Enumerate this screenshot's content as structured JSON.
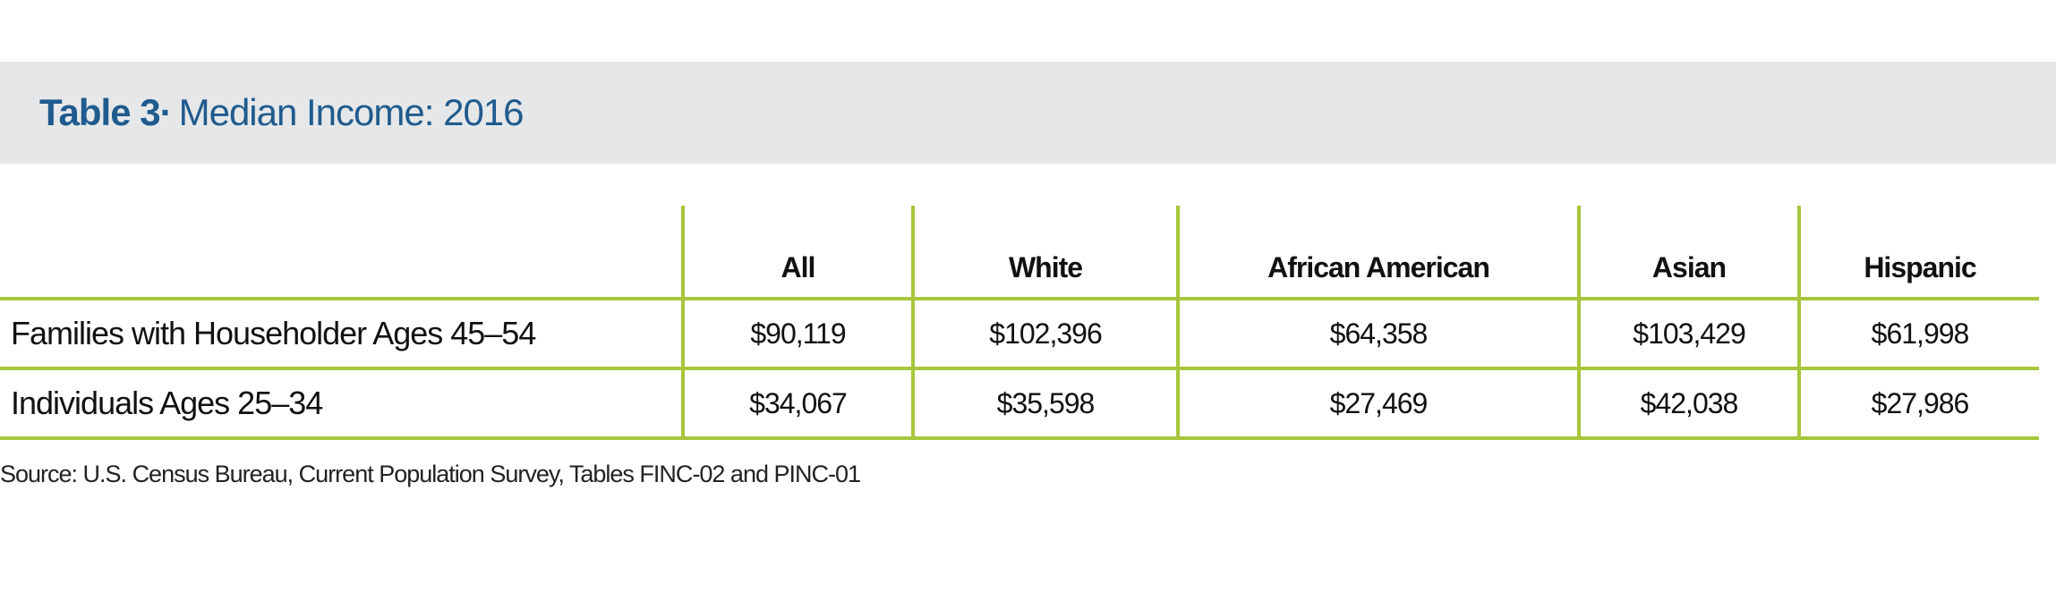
{
  "header": {
    "label": "Table 3·",
    "title": "Median Income: 2016"
  },
  "table": {
    "columns": [
      "All",
      "White",
      "African American",
      "Asian",
      "Hispanic"
    ],
    "rows": [
      {
        "label": "Families with Householder Ages 45–54",
        "cells": [
          "$90,119",
          "$102,396",
          "$64,358",
          "$103,429",
          "$61,998"
        ]
      },
      {
        "label": "Individuals Ages 25–34",
        "cells": [
          "$34,067",
          "$35,598",
          "$27,469",
          "$42,038",
          "$27,986"
        ]
      }
    ]
  },
  "source": "Source: U.S. Census Bureau, Current Population Survey, Tables FINC-02 and PINC-01"
}
